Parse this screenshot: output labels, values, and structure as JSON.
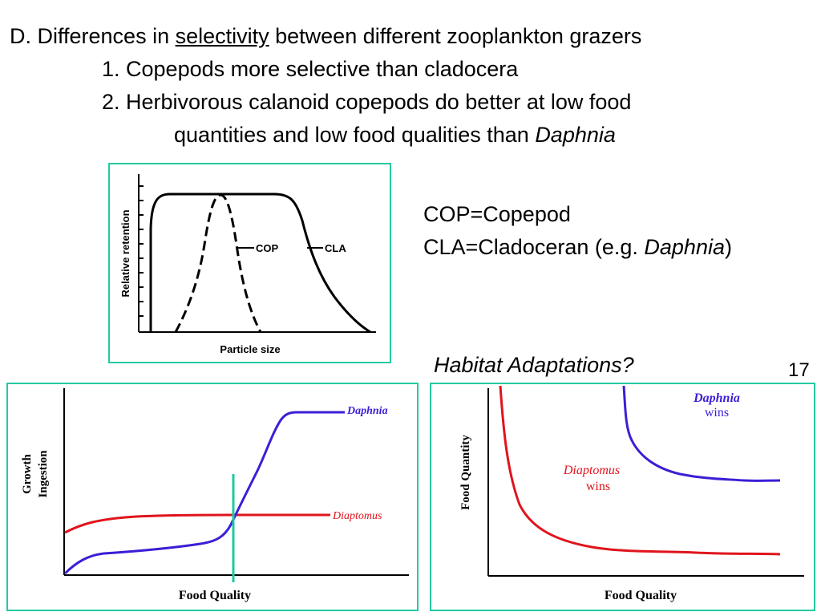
{
  "heading": {
    "prefix": "D. Differences in ",
    "emph": "selectivity",
    "suffix": " between different zooplankton grazers"
  },
  "points": {
    "p1": "1. Copepods more selective than cladocera",
    "p2": "2. Herbivorous calanoid copepods do better at low food",
    "p2b_prefix": "quantities and low food qualities than ",
    "p2b_italic": "Daphnia"
  },
  "legend_text": {
    "line1": "COP=Copepod",
    "line2_prefix": "CLA=Cladoceran (e.g. ",
    "line2_italic": "Daphnia",
    "line2_suffix": ")"
  },
  "habitat_question": "Habitat Adaptations?",
  "slide_number": "17",
  "colors": {
    "frame": "#25c9a0",
    "daphnia": "#3a1fd6",
    "diaptomus": "#e0141c",
    "marker": "#1fc9a0"
  },
  "fig_retention": {
    "ylabel": "Relative retention",
    "xlabel": "Particle size",
    "label_cop": "COP",
    "label_cla": "CLA"
  },
  "fig_growth": {
    "ylabel_1": "Growth",
    "ylabel_2": "Ingestion",
    "xlabel": "Food Quality",
    "series_daphnia": "Daphnia",
    "series_diaptomus": "Diaptomus"
  },
  "fig_quantity": {
    "ylabel": "Food Quantity",
    "xlabel": "Food Quality",
    "daphnia_label": "Daphnia",
    "daphnia_wins": "wins",
    "diaptomus_label": "Diaptomus",
    "diaptomus_wins": "wins"
  }
}
